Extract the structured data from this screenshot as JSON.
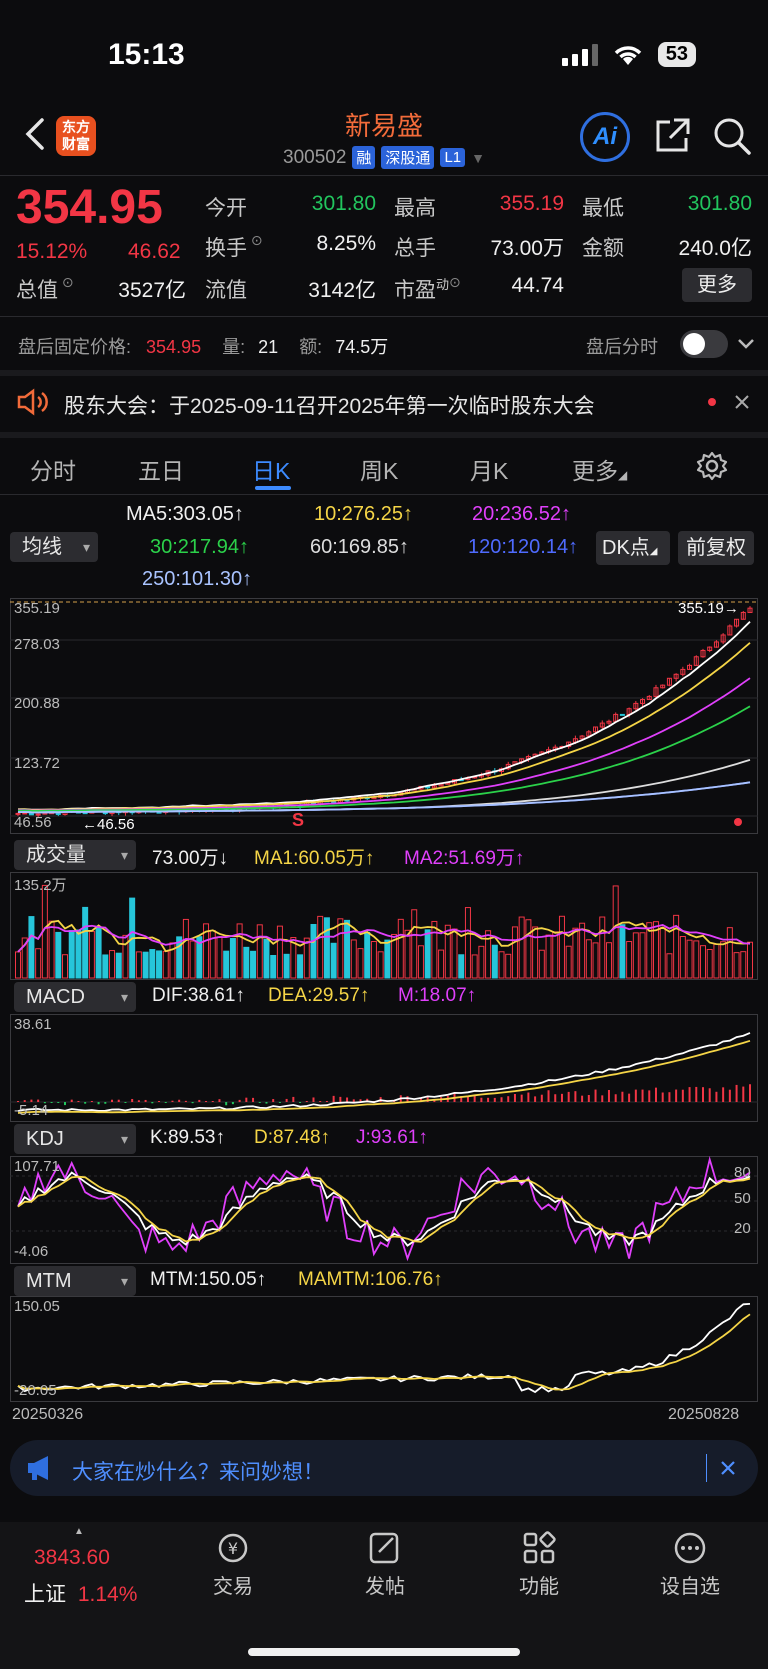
{
  "status_bar": {
    "time": "15:13",
    "battery": "53"
  },
  "header": {
    "logo_text": "东方财富",
    "stock_name": "新易盛",
    "stock_code": "300502",
    "tags": [
      "融",
      "深股通",
      "L1"
    ],
    "ai_label": "Ai"
  },
  "quote": {
    "price": "354.95",
    "change_pct": "15.12%",
    "change": "46.62",
    "fields": [
      {
        "label": "今开",
        "value": "301.80",
        "color": "green"
      },
      {
        "label": "最高",
        "value": "355.19",
        "color": "red"
      },
      {
        "label": "最低",
        "value": "301.80",
        "color": "green"
      },
      {
        "label": "换手",
        "value": "8.25%",
        "color": "white"
      },
      {
        "label": "总手",
        "value": "73.00万",
        "color": "white"
      },
      {
        "label": "金额",
        "value": "240.0亿",
        "color": "white"
      },
      {
        "label": "总值",
        "value": "3527亿",
        "color": "white"
      },
      {
        "label": "流值",
        "value": "3142亿",
        "color": "white"
      },
      {
        "label": "市盈",
        "value": "44.74",
        "color": "white"
      }
    ],
    "pe_superscript": "动",
    "more_label": "更多"
  },
  "after_hours": {
    "label": "盘后固定价格:",
    "price": "354.95",
    "vol_label": "量:",
    "vol": "21",
    "amount_label": "额:",
    "amount": "74.5万",
    "timeline_label": "盘后分时"
  },
  "notice": {
    "text": "股东大会：于2025-09-11召开2025年第一次临时股东大会"
  },
  "tabs": [
    "分时",
    "五日",
    "日K",
    "周K",
    "月K",
    "更多"
  ],
  "ma_panel": {
    "selector": "均线",
    "values": [
      {
        "text": "MA5:303.05↑",
        "color": "white"
      },
      {
        "text": "10:276.25↑",
        "color": "yellow"
      },
      {
        "text": "20:236.52↑",
        "color": "magenta"
      },
      {
        "text": "30:217.94↑",
        "color": "lgreen"
      },
      {
        "text": "60:169.85↑",
        "color": "white2"
      },
      {
        "text": "120:120.14↑",
        "color": "blue"
      },
      {
        "text": "250:101.30↑",
        "color": "lblue"
      }
    ],
    "dk_label": "DK点",
    "adjust_label": "前复权"
  },
  "price_chart": {
    "y_labels": [
      "355.19",
      "278.03",
      "200.88",
      "123.72",
      "46.56"
    ],
    "high_marker": "355.19→",
    "low_marker": "←46.56",
    "s_marker": "S"
  },
  "volume_panel": {
    "selector": "成交量",
    "values": [
      {
        "text": "73.00万↓",
        "color": "white"
      },
      {
        "text": "MA1:60.05万↑",
        "color": "yellow"
      },
      {
        "text": "MA2:51.69万↑",
        "color": "magenta"
      }
    ],
    "y_max": "135.2万"
  },
  "macd_panel": {
    "selector": "MACD",
    "values": [
      {
        "text": "DIF:38.61↑",
        "color": "white"
      },
      {
        "text": "DEA:29.57↑",
        "color": "yellow"
      },
      {
        "text": "M:18.07↑",
        "color": "magenta"
      }
    ],
    "y_max": "38.61",
    "y_min": "-5.14"
  },
  "kdj_panel": {
    "selector": "KDJ",
    "values": [
      {
        "text": "K:89.53↑",
        "color": "white"
      },
      {
        "text": "D:87.48↑",
        "color": "yellow"
      },
      {
        "text": "J:93.61↑",
        "color": "magenta"
      }
    ],
    "y_max": "107.71",
    "y_min": "-4.06",
    "levels": [
      "80",
      "50",
      "20"
    ]
  },
  "mtm_panel": {
    "selector": "MTM",
    "values": [
      {
        "text": "MTM:150.05↑",
        "color": "white"
      },
      {
        "text": "MAMTM:106.76↑",
        "color": "yellow"
      }
    ],
    "y_max": "150.05",
    "y_min": "-20.05",
    "date_start": "20250326",
    "date_end": "20250828"
  },
  "ask_bar": {
    "text": "大家在炒什么？来问妙想！"
  },
  "bottom_nav": {
    "index_value": "3843.60",
    "index_name": "上证",
    "index_pct": "1.14%",
    "items": [
      "交易",
      "发帖",
      "功能",
      "设自选"
    ]
  },
  "colors": {
    "up": "#f23645",
    "down": "#22c55e",
    "accent": "#3d8bff",
    "brand": "#e8501f"
  }
}
